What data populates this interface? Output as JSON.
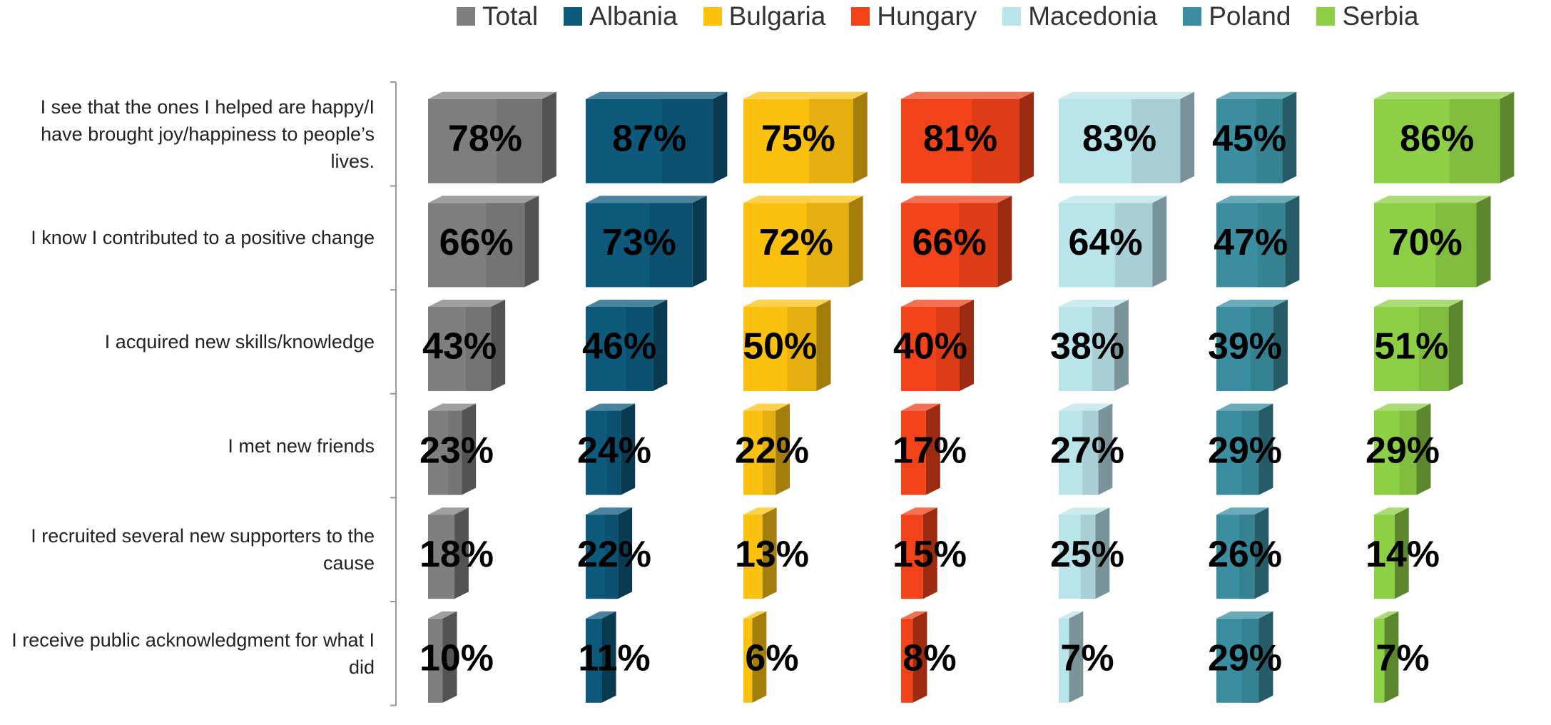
{
  "chart_data": {
    "type": "bar3d",
    "categories": [
      "I see that the ones I helped are happy/I have brought joy/happiness to people’s lives.",
      "I know I contributed to a positive change",
      "I acquired new skills/knowledge",
      "I met new friends",
      "I recruited several new supporters to the cause",
      "I receive public acknowledgment for what I did"
    ],
    "xlim": [
      0,
      100
    ],
    "series": [
      {
        "name": "Total",
        "color": "#7f7f7f",
        "values": [
          78,
          66,
          43,
          23,
          18,
          10
        ],
        "value_labels": [
          "78%",
          "66%",
          "43%",
          "23%",
          "18%",
          "10%"
        ]
      },
      {
        "name": "Albania",
        "color": "#0d5a7c",
        "values": [
          87,
          73,
          46,
          24,
          22,
          11
        ],
        "value_labels": [
          "87%",
          "73%",
          "46%",
          "24%",
          "22%",
          "11%"
        ]
      },
      {
        "name": "Bulgaria",
        "color": "#fcc10f",
        "values": [
          75,
          72,
          50,
          22,
          13,
          6
        ],
        "value_labels": [
          "75%",
          "72%",
          "50%",
          "22%",
          "13%",
          "6%"
        ]
      },
      {
        "name": "Hungary",
        "color": "#f2421a",
        "values": [
          81,
          66,
          40,
          17,
          15,
          8
        ],
        "value_labels": [
          "81%",
          "66%",
          "40%",
          "17%",
          "15%",
          "8%"
        ]
      },
      {
        "name": "Macedonia",
        "color": "#b9e4ea",
        "values": [
          83,
          64,
          38,
          27,
          25,
          7
        ],
        "value_labels": [
          "83%",
          "64%",
          "38%",
          "27%",
          "25%",
          "7%"
        ]
      },
      {
        "name": "Poland",
        "color": "#3a8ea0",
        "values": [
          45,
          47,
          39,
          29,
          26,
          29
        ],
        "value_labels": [
          "45%",
          "47%",
          "39%",
          "29%",
          "26%",
          "29%"
        ]
      },
      {
        "name": "Serbia",
        "color": "#8dcf45",
        "values": [
          86,
          70,
          51,
          29,
          14,
          7
        ],
        "value_labels": [
          "86%",
          "70%",
          "51%",
          "29%",
          "14%",
          "7%"
        ]
      }
    ]
  }
}
